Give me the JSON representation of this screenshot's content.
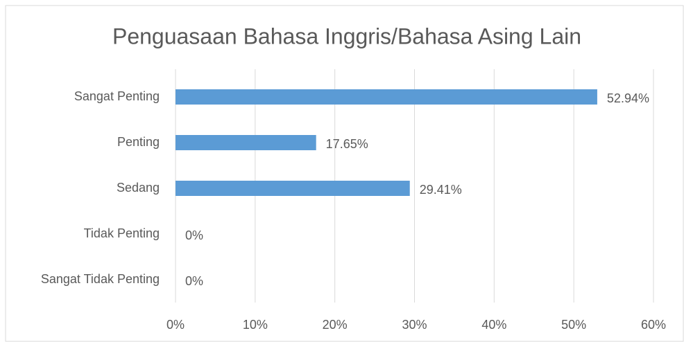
{
  "chart_data": {
    "type": "bar",
    "orientation": "horizontal",
    "title": "Penguasaan Bahasa Inggris/Bahasa Asing Lain",
    "categories": [
      "Sangat Penting",
      "Penting",
      "Sedang",
      "Tidak Penting",
      "Sangat Tidak Penting"
    ],
    "values": [
      52.94,
      17.65,
      29.41,
      0,
      0
    ],
    "value_labels": [
      "52.94%",
      "17.65%",
      "29.41%",
      "0%",
      "0%"
    ],
    "color": "#5b9bd5",
    "xlim": [
      0,
      60
    ],
    "xticks": [
      {
        "value": 0,
        "label": "0%"
      },
      {
        "value": 10,
        "label": "10%"
      },
      {
        "value": 20,
        "label": "20%"
      },
      {
        "value": 30,
        "label": "30%"
      },
      {
        "value": 40,
        "label": "40%"
      },
      {
        "value": 50,
        "label": "50%"
      },
      {
        "value": 60,
        "label": "60%"
      }
    ],
    "grid": true
  }
}
